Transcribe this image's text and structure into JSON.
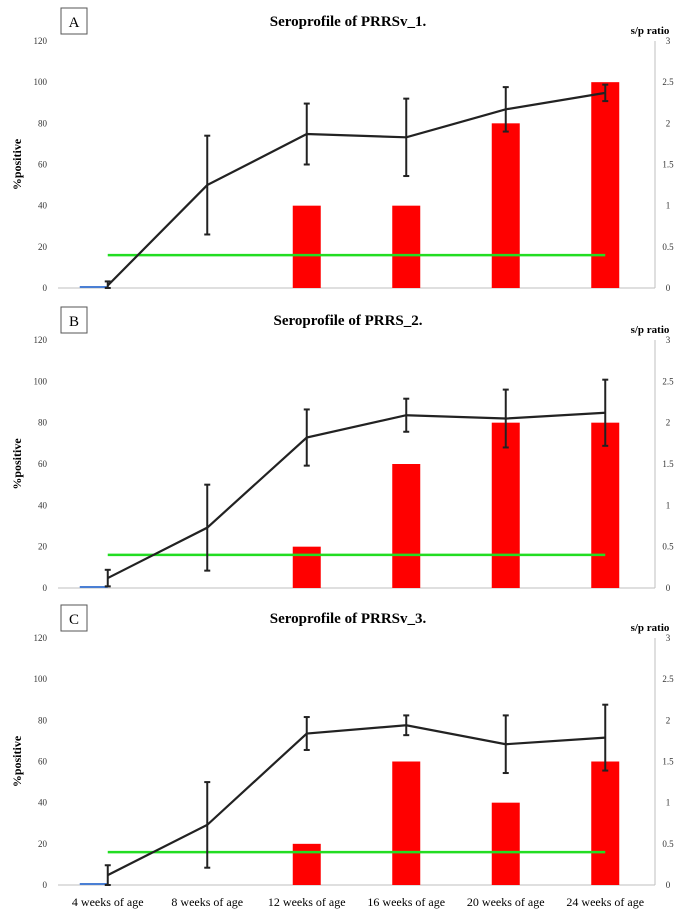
{
  "colors": {
    "bar": "#ff0000",
    "line": "#222222",
    "threshold": "#22dd22",
    "baseline": "#4a7fd4"
  },
  "x_categories": [
    "4 weeks of age",
    "8 weeks of age",
    "12 weeks of age",
    "16 weeks of age",
    "20 weeks of age",
    "24 weeks of age"
  ],
  "chart_data": [
    {
      "type": "bar",
      "panel_label": "A",
      "title": "Seroprofile of PRRSv_1.",
      "xlabel": "",
      "ylabel": "%positive",
      "y2label": "s/p ratio",
      "ylim": [
        0,
        120
      ],
      "y2lim": [
        0,
        3
      ],
      "yticks": [
        "0",
        "20",
        "40",
        "60",
        "80",
        "100",
        "120"
      ],
      "y2ticks": [
        "0",
        "0.5",
        "1",
        "1.5",
        "2",
        "2.5",
        "3"
      ],
      "categories": [
        "4 weeks of age",
        "8 weeks of age",
        "12 weeks of age",
        "16 weeks of age",
        "20 weeks of age",
        "24 weeks of age"
      ],
      "bars_percent_positive": [
        0,
        0,
        40,
        40,
        80,
        100
      ],
      "line_sp_ratio": [
        0.03,
        1.25,
        1.87,
        1.83,
        2.17,
        2.37
      ],
      "line_error": [
        0.05,
        0.6,
        0.37,
        0.47,
        0.27,
        0.1
      ],
      "threshold_sp": 0.4
    },
    {
      "type": "bar",
      "panel_label": "B",
      "title": "Seroprofile of PRRS_2.",
      "xlabel": "",
      "ylabel": "%positive",
      "y2label": "s/p ratio",
      "ylim": [
        0,
        120
      ],
      "y2lim": [
        0,
        3
      ],
      "yticks": [
        "0",
        "20",
        "40",
        "60",
        "80",
        "100",
        "120"
      ],
      "y2ticks": [
        "0",
        "0.5",
        "1",
        "1.5",
        "2",
        "2.5",
        "3"
      ],
      "categories": [
        "4 weeks of age",
        "8 weeks of age",
        "12 weeks of age",
        "16 weeks of age",
        "20 weeks of age",
        "24 weeks of age"
      ],
      "bars_percent_positive": [
        0,
        0,
        20,
        60,
        80,
        80
      ],
      "line_sp_ratio": [
        0.12,
        0.73,
        1.82,
        2.09,
        2.05,
        2.12
      ],
      "line_error": [
        0.1,
        0.52,
        0.34,
        0.2,
        0.35,
        0.4
      ],
      "threshold_sp": 0.4
    },
    {
      "type": "bar",
      "panel_label": "C",
      "title": "Seroprofile of PRRSv_3.",
      "xlabel": "",
      "ylabel": "%positive",
      "y2label": "s/p ratio",
      "ylim": [
        0,
        120
      ],
      "y2lim": [
        0,
        3
      ],
      "yticks": [
        "0",
        "20",
        "40",
        "60",
        "80",
        "100",
        "120"
      ],
      "y2ticks": [
        "0",
        "0.5",
        "1",
        "1.5",
        "2",
        "2.5",
        "3"
      ],
      "categories": [
        "4 weeks of age",
        "8 weeks of age",
        "12 weeks of age",
        "16 weeks of age",
        "20 weeks of age",
        "24 weeks of age"
      ],
      "bars_percent_positive": [
        0,
        0,
        20,
        60,
        40,
        60
      ],
      "line_sp_ratio": [
        0.12,
        0.73,
        1.84,
        1.94,
        1.71,
        1.79
      ],
      "line_error": [
        0.12,
        0.52,
        0.2,
        0.12,
        0.35,
        0.4
      ],
      "threshold_sp": 0.4
    }
  ]
}
